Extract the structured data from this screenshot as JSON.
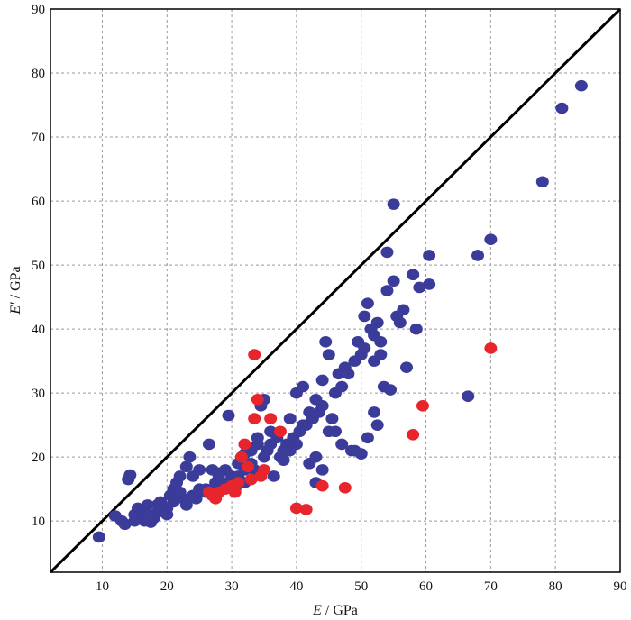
{
  "chart_data": {
    "type": "scatter",
    "xlabel_var": "E",
    "xlabel_unit": " / GPa",
    "ylabel_var": "E′",
    "ylabel_unit": " / GPa",
    "xlim": [
      2,
      90
    ],
    "ylim": [
      2,
      90
    ],
    "xticks": [
      10,
      20,
      30,
      40,
      50,
      60,
      70,
      80,
      90
    ],
    "yticks": [
      10,
      20,
      30,
      40,
      50,
      60,
      70,
      80,
      90
    ],
    "grid": true,
    "reference_line": {
      "from": [
        2,
        2
      ],
      "to": [
        90,
        90
      ],
      "color": "#000000"
    },
    "colors": {
      "series_a": "#3b3b9a",
      "series_b": "#e8242c"
    },
    "series": [
      {
        "key": "series_a",
        "points": [
          [
            9.5,
            7.5
          ],
          [
            12,
            10.8
          ],
          [
            13,
            10
          ],
          [
            13.5,
            9.5
          ],
          [
            14,
            16.5
          ],
          [
            14.3,
            17.2
          ],
          [
            15,
            11
          ],
          [
            15.5,
            12
          ],
          [
            16,
            11.5
          ],
          [
            16.5,
            10
          ],
          [
            17,
            12.5
          ],
          [
            17.5,
            9.8
          ],
          [
            18,
            11
          ],
          [
            18.5,
            12.5
          ],
          [
            19,
            13
          ],
          [
            19.5,
            12
          ],
          [
            20,
            11
          ],
          [
            20.5,
            14
          ],
          [
            21,
            15
          ],
          [
            21.5,
            16
          ],
          [
            22,
            17
          ],
          [
            22.5,
            13.5
          ],
          [
            23,
            18.5
          ],
          [
            23.5,
            20
          ],
          [
            24,
            17
          ],
          [
            24.5,
            13.5
          ],
          [
            25,
            18
          ],
          [
            26,
            15
          ],
          [
            26.5,
            22
          ],
          [
            27,
            18
          ],
          [
            27.5,
            16
          ],
          [
            28,
            17.5
          ],
          [
            28.5,
            16
          ],
          [
            29,
            18
          ],
          [
            29.5,
            26.5
          ],
          [
            30,
            17
          ],
          [
            30.5,
            15
          ],
          [
            31,
            19
          ],
          [
            32,
            20.5
          ],
          [
            32,
            16
          ],
          [
            33,
            21
          ],
          [
            33.5,
            18
          ],
          [
            34,
            22
          ],
          [
            34.5,
            28
          ],
          [
            35,
            29
          ],
          [
            35.5,
            21
          ],
          [
            36,
            24
          ],
          [
            36.5,
            17
          ],
          [
            37,
            23
          ],
          [
            37.5,
            20
          ],
          [
            38,
            19.5
          ],
          [
            38.5,
            22
          ],
          [
            39,
            21
          ],
          [
            39.5,
            23
          ],
          [
            40,
            22
          ],
          [
            40,
            30
          ],
          [
            40.5,
            24
          ],
          [
            41,
            31
          ],
          [
            41.5,
            25
          ],
          [
            42,
            19
          ],
          [
            42.5,
            26
          ],
          [
            43,
            20
          ],
          [
            43.5,
            27
          ],
          [
            44,
            28
          ],
          [
            44,
            32
          ],
          [
            44.5,
            38
          ],
          [
            45,
            24
          ],
          [
            45.5,
            26
          ],
          [
            46,
            30
          ],
          [
            46.5,
            33
          ],
          [
            47,
            31
          ],
          [
            47.5,
            34
          ],
          [
            48,
            33
          ],
          [
            48.5,
            21
          ],
          [
            49,
            35
          ],
          [
            49.5,
            38
          ],
          [
            50,
            20.5
          ],
          [
            50,
            36
          ],
          [
            50.5,
            37
          ],
          [
            51,
            44
          ],
          [
            51.5,
            40
          ],
          [
            52,
            35
          ],
          [
            52.5,
            41
          ],
          [
            53,
            38
          ],
          [
            53.5,
            31
          ],
          [
            54,
            46
          ],
          [
            54.5,
            30.5
          ],
          [
            55,
            47.5
          ],
          [
            55,
            59.5
          ],
          [
            55.5,
            42
          ],
          [
            56,
            41
          ],
          [
            56.5,
            43
          ],
          [
            57,
            34
          ],
          [
            58,
            48.5
          ],
          [
            58.5,
            40
          ],
          [
            59,
            46.5
          ],
          [
            60.5,
            51.5
          ],
          [
            60.5,
            47
          ],
          [
            66.5,
            29.5
          ],
          [
            68,
            51.5
          ],
          [
            70,
            54
          ],
          [
            78,
            63
          ],
          [
            81,
            74.5
          ],
          [
            84,
            78
          ],
          [
            50.5,
            42
          ],
          [
            52,
            39
          ],
          [
            53,
            36
          ],
          [
            54,
            52
          ],
          [
            45,
            36
          ],
          [
            43,
            29
          ],
          [
            42,
            27
          ],
          [
            41,
            25
          ],
          [
            39,
            26
          ],
          [
            38,
            21
          ],
          [
            36,
            22
          ],
          [
            35,
            20
          ],
          [
            34,
            23
          ],
          [
            33,
            19
          ],
          [
            32,
            18
          ],
          [
            31,
            17
          ],
          [
            30,
            16.5
          ],
          [
            29,
            15.5
          ],
          [
            28,
            17
          ],
          [
            27,
            15
          ],
          [
            26,
            14.5
          ],
          [
            25,
            15
          ],
          [
            24,
            14
          ],
          [
            23,
            12.5
          ],
          [
            22,
            14.5
          ],
          [
            21,
            13
          ],
          [
            20,
            12
          ],
          [
            19,
            11.5
          ],
          [
            18,
            10.5
          ],
          [
            17,
            11
          ],
          [
            16,
            10.5
          ],
          [
            15,
            10
          ],
          [
            52,
            27
          ],
          [
            52.5,
            25
          ],
          [
            51,
            23
          ],
          [
            49,
            21
          ],
          [
            47,
            22
          ],
          [
            46,
            24
          ],
          [
            44,
            18
          ],
          [
            43,
            16
          ]
        ]
      },
      {
        "key": "series_b",
        "points": [
          [
            26.5,
            14.5
          ],
          [
            27,
            14
          ],
          [
            27.5,
            13.5
          ],
          [
            28,
            14.5
          ],
          [
            29,
            15
          ],
          [
            30,
            15.5
          ],
          [
            30.5,
            14.5
          ],
          [
            31,
            16
          ],
          [
            31.5,
            20
          ],
          [
            32,
            22
          ],
          [
            32.5,
            18.5
          ],
          [
            33,
            16.5
          ],
          [
            33.5,
            26
          ],
          [
            33.5,
            36
          ],
          [
            34,
            29
          ],
          [
            34.5,
            17
          ],
          [
            35,
            18
          ],
          [
            36,
            26
          ],
          [
            37.5,
            24
          ],
          [
            40,
            12
          ],
          [
            41.5,
            11.8
          ],
          [
            44,
            15.5
          ],
          [
            47.5,
            15.2
          ],
          [
            58,
            23.5
          ],
          [
            59.5,
            28
          ],
          [
            70,
            37
          ]
        ]
      }
    ]
  }
}
